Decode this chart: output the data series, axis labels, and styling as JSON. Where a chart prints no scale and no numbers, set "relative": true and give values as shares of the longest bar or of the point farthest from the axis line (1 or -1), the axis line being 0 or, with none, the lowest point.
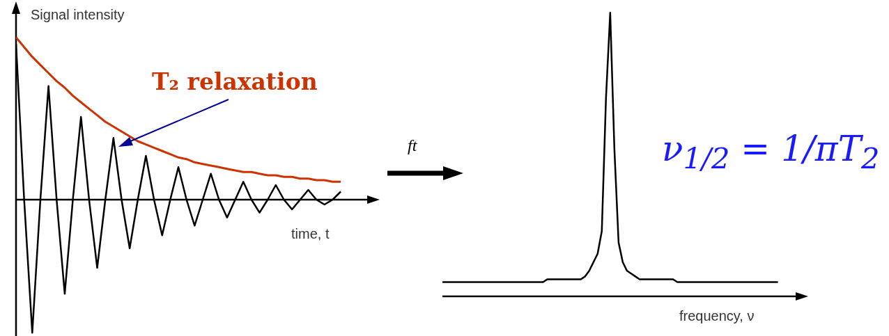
{
  "chart_data": [
    {
      "type": "line",
      "relative": true,
      "ylabel": "Signal intensity",
      "xlabel": "time, t",
      "marker": "none",
      "line_style": "solid",
      "categories": [
        null,
        null,
        null,
        null,
        null,
        null,
        null,
        null,
        null,
        null,
        null,
        null,
        null,
        null,
        null,
        null,
        null,
        null,
        null,
        null,
        null,
        null,
        null,
        null,
        null,
        null,
        null,
        null,
        null,
        null,
        null,
        null,
        null,
        null,
        null,
        null,
        null,
        null,
        null,
        null,
        null
      ],
      "series": [
        {
          "color": "#000000",
          "values": [
            0.96,
            0,
            -0.82,
            0,
            0.7,
            0,
            -0.58,
            0,
            0.51,
            0,
            -0.42,
            0,
            0.38,
            0,
            -0.3,
            0,
            0.27,
            0,
            -0.22,
            0,
            0.2,
            0,
            -0.16,
            0,
            0.16,
            0,
            -0.11,
            0,
            0.11,
            0,
            -0.08,
            0,
            0.09,
            0,
            -0.06,
            0,
            0.06,
            0,
            -0.03,
            0,
            0.05
          ]
        },
        {
          "color": "#cc3300",
          "values": [
            1.0,
            0.94,
            0.88,
            0.83,
            0.78,
            0.73,
            0.69,
            0.64,
            0.6,
            0.56,
            0.52,
            0.48,
            0.45,
            0.42,
            0.39,
            0.36,
            0.34,
            0.32,
            0.3,
            0.28,
            0.26,
            0.25,
            0.23,
            0.22,
            0.21,
            0.2,
            0.19,
            0.18,
            0.17,
            0.17,
            0.16,
            0.15,
            0.15,
            0.14,
            0.14,
            0.13,
            0.13,
            0.12,
            0.12,
            0.11,
            0.11
          ]
        }
      ],
      "annotations": [
        "T₂ relaxation"
      ]
    },
    {
      "type": "line",
      "relative": true,
      "xlabel": "frequency, ν",
      "marker": "none",
      "line_style": "solid",
      "categories": [
        null,
        null,
        null,
        null,
        null,
        null,
        null,
        null,
        null,
        null,
        null,
        null,
        null,
        null,
        null,
        null,
        null,
        null,
        null,
        null,
        null,
        null,
        null,
        null,
        null,
        null,
        null,
        null,
        null,
        null,
        null,
        null,
        null,
        null,
        null,
        null,
        null,
        null,
        null,
        null,
        null,
        null,
        null,
        null,
        null,
        null,
        null,
        null,
        null,
        null,
        null,
        null,
        null,
        null,
        null,
        null,
        null,
        null,
        null,
        null,
        null,
        null,
        null,
        null,
        null,
        null,
        null,
        null,
        null,
        null,
        null,
        null,
        null,
        null,
        null,
        null,
        null,
        null,
        null,
        null,
        null
      ],
      "series": [
        {
          "color": "#000000",
          "values": [
            0.05,
            0.05,
            0.05,
            0.05,
            0.05,
            0.05,
            0.05,
            0.05,
            0.05,
            0.05,
            0.05,
            0.05,
            0.05,
            0.05,
            0.05,
            0.05,
            0.05,
            0.05,
            0.05,
            0.05,
            0.05,
            0.05,
            0.05,
            0.05,
            0.05,
            0.06,
            0.06,
            0.06,
            0.06,
            0.06,
            0.06,
            0.06,
            0.06,
            0.06,
            0.07,
            0.09,
            0.12,
            0.15,
            0.23,
            0.7,
            1.0,
            0.52,
            0.19,
            0.12,
            0.09,
            0.08,
            0.07,
            0.06,
            0.06,
            0.06,
            0.06,
            0.06,
            0.06,
            0.06,
            0.06,
            0.06,
            0.05,
            0.05,
            0.05,
            0.05,
            0.05,
            0.05,
            0.05,
            0.05,
            0.05,
            0.05,
            0.05,
            0.05,
            0.05,
            0.05,
            0.05,
            0.05,
            0.05,
            0.05,
            0.05,
            0.05,
            0.05,
            0.05,
            0.05,
            0.05,
            0.05
          ]
        }
      ],
      "annotations": [
        "ft",
        "ν$_{1/2}$ = 1/πT$_{2}$"
      ]
    }
  ]
}
